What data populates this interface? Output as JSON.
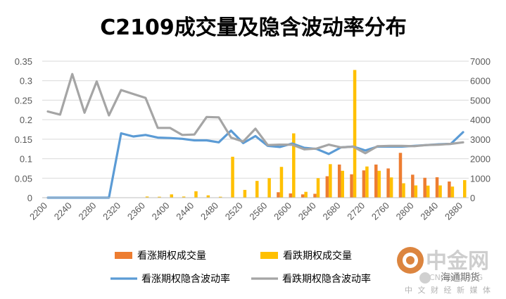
{
  "chart_data": {
    "type": "bar",
    "title": "C2109成交量及隐含波动率分布",
    "categories": [
      2200,
      2220,
      2240,
      2260,
      2280,
      2300,
      2320,
      2340,
      2360,
      2380,
      2400,
      2420,
      2440,
      2460,
      2480,
      2500,
      2520,
      2540,
      2560,
      2580,
      2600,
      2620,
      2640,
      2660,
      2680,
      2700,
      2720,
      2740,
      2760,
      2780,
      2800,
      2820,
      2840,
      2860,
      2880
    ],
    "x_tick_labels": [
      "2200",
      "2240",
      "2280",
      "2320",
      "2360",
      "2400",
      "2440",
      "2480",
      "2520",
      "2560",
      "2600",
      "2640",
      "2680",
      "2720",
      "2760",
      "2800",
      "2840",
      "2880"
    ],
    "y_left": {
      "min": 0,
      "max": 0.35,
      "ticks": [
        "0",
        "0.05",
        "0.1",
        "0.15",
        "0.2",
        "0.25",
        "0.3",
        "0.35"
      ]
    },
    "y_right": {
      "min": 0,
      "max": 7000,
      "ticks": [
        "0",
        "1000",
        "2000",
        "3000",
        "4000",
        "5000",
        "6000",
        "7000"
      ]
    },
    "grid": true,
    "legend_position": "bottom",
    "series": [
      {
        "name": "看涨期权成交量",
        "type": "bar",
        "axis": "right",
        "color": "#ED7D31",
        "values": [
          0,
          0,
          0,
          0,
          0,
          0,
          0,
          0,
          0,
          0,
          0,
          0,
          0,
          0,
          0,
          0,
          0,
          0,
          0,
          280,
          220,
          170,
          200,
          1100,
          1700,
          1200,
          1400,
          1700,
          1500,
          2300,
          1180,
          1020,
          1050,
          830,
          0
        ]
      },
      {
        "name": "看跌期权成交量",
        "type": "bar",
        "axis": "right",
        "color": "#FFC000",
        "values": [
          0,
          0,
          0,
          0,
          0,
          0,
          0,
          0,
          60,
          50,
          170,
          60,
          330,
          120,
          50,
          2100,
          400,
          860,
          1000,
          1580,
          3300,
          300,
          1000,
          1720,
          1380,
          6550,
          1600,
          1380,
          1040,
          740,
          630,
          620,
          630,
          570,
          900
        ]
      },
      {
        "name": "看涨期权隐含波动率",
        "type": "line",
        "axis": "left",
        "color": "#5B9BD5",
        "values": [
          0,
          0,
          0,
          0,
          0,
          0,
          0.165,
          0.157,
          0.161,
          0.154,
          0.153,
          0.151,
          0.147,
          0.147,
          0.142,
          0.172,
          0.14,
          0.158,
          0.133,
          0.13,
          0.139,
          0.128,
          0.125,
          0.112,
          0.129,
          0.131,
          0.121,
          0.131,
          0.131,
          0.131,
          0.133,
          0.135,
          0.137,
          0.138,
          0.168
        ]
      },
      {
        "name": "看跌期权隐含波动率",
        "type": "line",
        "axis": "left",
        "color": "#A5A5A5",
        "values": [
          0.221,
          0.213,
          0.317,
          0.218,
          0.298,
          0.211,
          0.276,
          0.266,
          0.256,
          0.179,
          0.179,
          0.161,
          0.162,
          0.207,
          0.206,
          0.154,
          0.144,
          0.177,
          0.135,
          0.136,
          0.136,
          0.124,
          0.126,
          0.136,
          0.129,
          0.131,
          0.114,
          0.132,
          0.133,
          0.133,
          0.132,
          0.135,
          0.136,
          0.138,
          0.142
        ]
      }
    ]
  },
  "watermark": {
    "brand_cn": "中金网",
    "brand_en": "CNGOLD.ORG",
    "tagline": "中 文 财 经 新 媒 体",
    "source": "海通期货"
  }
}
